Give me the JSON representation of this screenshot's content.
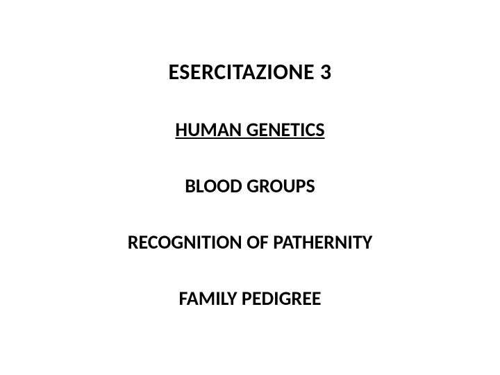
{
  "slide": {
    "background_color": "#ffffff",
    "text_color": "#000000",
    "font_family": "Calibri",
    "title": {
      "text": "ESERCITAZIONE 3",
      "fontsize": 32,
      "weight": 700
    },
    "subtitle": {
      "text": "HUMAN GENETICS",
      "fontsize": 28,
      "weight": 700,
      "underline": true
    },
    "topics": [
      {
        "text": "BLOOD GROUPS",
        "fontsize": 28,
        "weight": 700
      },
      {
        "text": "RECOGNITION OF PATHERNITY",
        "fontsize": 28,
        "weight": 700
      },
      {
        "text": "FAMILY PEDIGREE",
        "fontsize": 28,
        "weight": 700
      }
    ]
  }
}
